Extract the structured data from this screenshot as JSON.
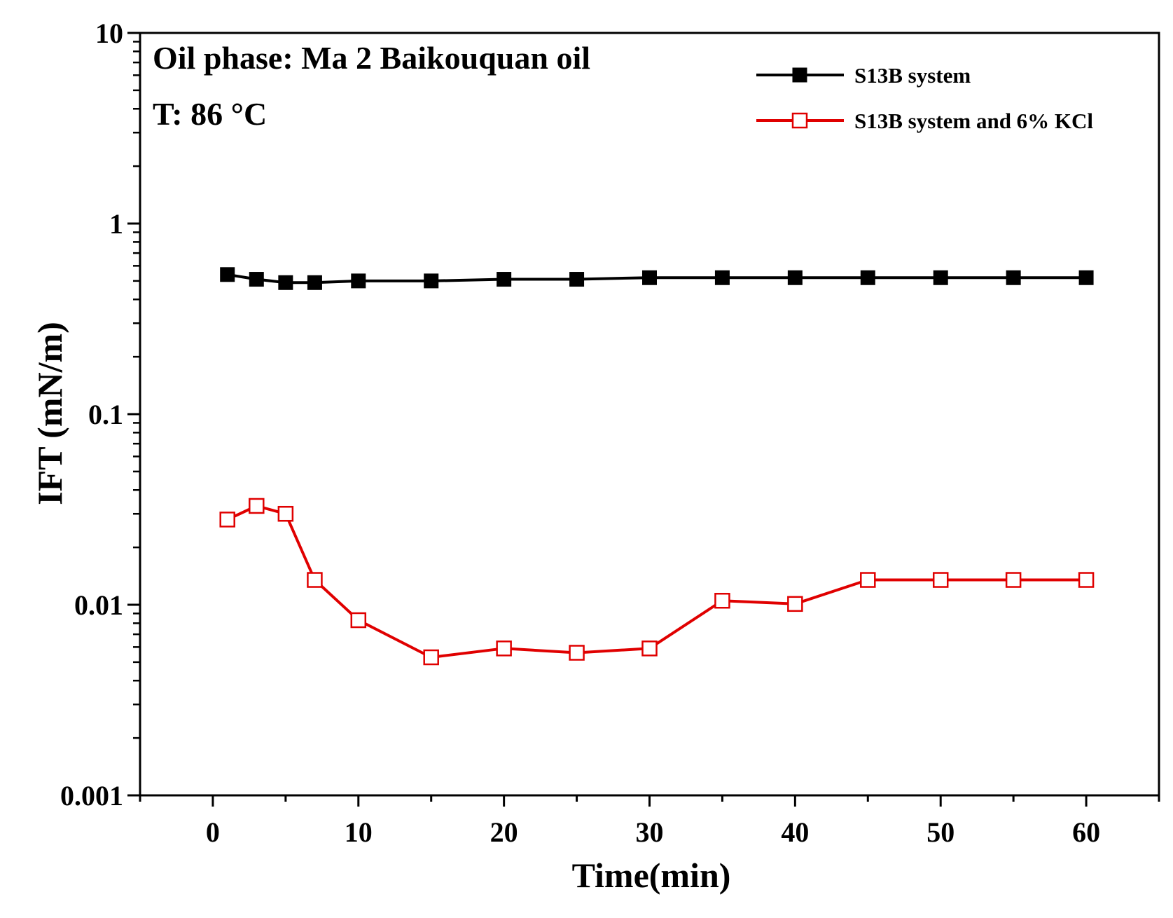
{
  "chart_data": {
    "type": "line",
    "title": "",
    "xlabel": "Time(min)",
    "ylabel": "IFT (mN/m)",
    "xlim": [
      -5,
      65
    ],
    "ylim": [
      0.001,
      10
    ],
    "yscale": "log",
    "xticks": [
      0,
      10,
      20,
      30,
      40,
      50,
      60
    ],
    "xtick_labels": [
      "0",
      "10",
      "20",
      "30",
      "40",
      "50",
      "60"
    ],
    "yticks": [
      0.001,
      0.01,
      0.1,
      1,
      10
    ],
    "ytick_labels": [
      "0.001",
      "0.01",
      "0.1",
      "1",
      "10"
    ],
    "annotations": [
      "Oil phase: Ma 2 Baikouquan oil",
      "T: 86 °C"
    ],
    "legend_position": "top-right",
    "series": [
      {
        "name": "S13B system",
        "color": "#000000",
        "marker": "filled-square",
        "x": [
          1,
          3,
          5,
          7,
          10,
          15,
          20,
          25,
          30,
          35,
          40,
          45,
          50,
          55,
          60
        ],
        "values": [
          0.54,
          0.51,
          0.49,
          0.49,
          0.5,
          0.5,
          0.51,
          0.51,
          0.52,
          0.52,
          0.52,
          0.52,
          0.52,
          0.52,
          0.52
        ]
      },
      {
        "name": "S13B system and 6% KCl",
        "color": "#e00000",
        "marker": "open-square",
        "x": [
          1,
          3,
          5,
          7,
          10,
          15,
          20,
          25,
          30,
          35,
          40,
          45,
          50,
          55,
          60
        ],
        "values": [
          0.028,
          0.033,
          0.03,
          0.0135,
          0.0083,
          0.0053,
          0.0059,
          0.0056,
          0.0059,
          0.0105,
          0.0101,
          0.0135,
          0.0135,
          0.0135,
          0.0135
        ]
      }
    ]
  }
}
